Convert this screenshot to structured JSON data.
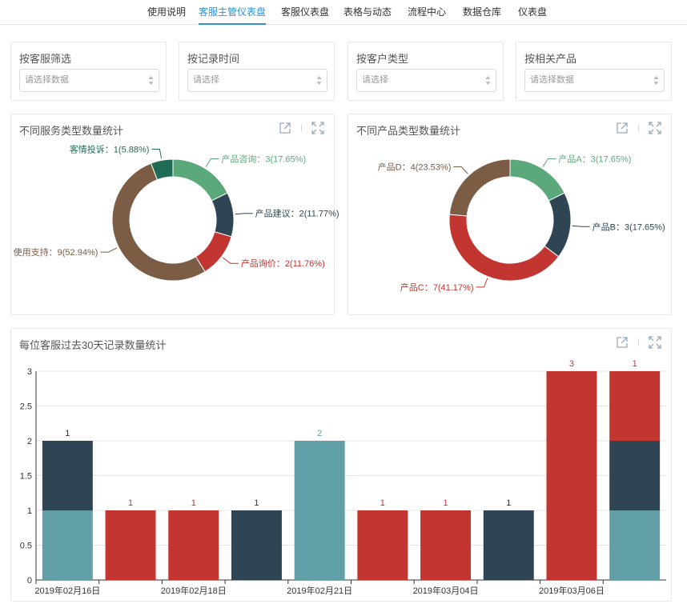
{
  "nav": {
    "tabs": [
      {
        "label": "使用说明"
      },
      {
        "label": "客服主管仪表盘",
        "active": true
      },
      {
        "label": "客服仪表盘"
      },
      {
        "label": "表格与动态"
      },
      {
        "label": "流程中心"
      },
      {
        "label": "数据仓库"
      },
      {
        "label": "仪表盘"
      }
    ]
  },
  "filters": [
    {
      "title": "按客服筛选",
      "placeholder": "请选择数据"
    },
    {
      "title": "按记录时间",
      "placeholder": "请选择"
    },
    {
      "title": "按客户类型",
      "placeholder": "请选择"
    },
    {
      "title": "按相关产品",
      "placeholder": "请选择数据"
    }
  ],
  "icons": {
    "export": "external-link-icon",
    "fullscreen": "fullscreen-icon"
  },
  "colors": {
    "green": "#5ba97a",
    "navy": "#2f4554",
    "red": "#c23531",
    "brown": "#7b5d45",
    "darkgreen": "#1f6b56",
    "teal": "#61a0a8",
    "accent": "#2f8fd8"
  },
  "pie_service": {
    "title": "不同服务类型数量统计",
    "chart_data": {
      "type": "pie",
      "slices": [
        {
          "name": "产品咨询",
          "value": 3,
          "label": "产品咨询：3(17.65%)",
          "color": "#5ba97a"
        },
        {
          "name": "产品建议",
          "value": 2,
          "label": "产品建议：2(11.77%)",
          "color": "#2f4554"
        },
        {
          "name": "产品询价",
          "value": 2,
          "label": "产品询价：2(11.76%)",
          "color": "#c23531"
        },
        {
          "name": "使用支持",
          "value": 9,
          "label": "使用支持：9(52.94%)",
          "color": "#7b5d45"
        },
        {
          "name": "客情投诉",
          "value": 1,
          "label": "客情投诉：1(5.88%)",
          "color": "#1f6b56"
        }
      ]
    }
  },
  "pie_product": {
    "title": "不同产品类型数量统计",
    "chart_data": {
      "type": "pie",
      "slices": [
        {
          "name": "产品A",
          "value": 3,
          "label": "产品A：3(17.65%)",
          "color": "#5ba97a"
        },
        {
          "name": "产品B",
          "value": 3,
          "label": "产品B：3(17.65%)",
          "color": "#2f4554"
        },
        {
          "name": "产品C",
          "value": 7,
          "label": "产品C：7(41.17%)",
          "color": "#c23531"
        },
        {
          "name": "产品D",
          "value": 4,
          "label": "产品D：4(23.53%)",
          "color": "#7b5d45"
        }
      ]
    }
  },
  "bar_chart": {
    "title": "每位客服过去30天记录数量统计",
    "chart_data": {
      "type": "bar",
      "stacked": true,
      "ylim": [
        0,
        3
      ],
      "yticks": [
        "0",
        "0.5",
        "1",
        "1.5",
        "2",
        "2.5",
        "3"
      ],
      "xtick_labels": [
        "2019年02月16日",
        "2019年02月18日",
        "2019年02月21日",
        "2019年03月04日",
        "2019年03月06日"
      ],
      "bars": [
        {
          "segments": [
            {
              "value": 1,
              "color": "#61a0a8"
            },
            {
              "value": 1,
              "color": "#2f4554"
            }
          ],
          "label": "1",
          "label_color": "#333333"
        },
        {
          "segments": [
            {
              "value": 1,
              "color": "#c23531"
            }
          ],
          "label": "1",
          "label_color": "#c23531"
        },
        {
          "segments": [
            {
              "value": 1,
              "color": "#c23531"
            }
          ],
          "label": "1",
          "label_color": "#c23531"
        },
        {
          "segments": [
            {
              "value": 1,
              "color": "#2f4554"
            }
          ],
          "label": "1",
          "label_color": "#333333"
        },
        {
          "segments": [
            {
              "value": 2,
              "color": "#61a0a8"
            }
          ],
          "label": "2",
          "label_color": "#61a0a8"
        },
        {
          "segments": [
            {
              "value": 1,
              "color": "#c23531"
            }
          ],
          "label": "1",
          "label_color": "#c23531"
        },
        {
          "segments": [
            {
              "value": 1,
              "color": "#c23531"
            }
          ],
          "label": "1",
          "label_color": "#c23531"
        },
        {
          "segments": [
            {
              "value": 1,
              "color": "#2f4554"
            }
          ],
          "label": "1",
          "label_color": "#333333"
        },
        {
          "segments": [
            {
              "value": 3,
              "color": "#c23531"
            }
          ],
          "label": "3",
          "label_color": "#c23531"
        },
        {
          "segments": [
            {
              "value": 1,
              "color": "#61a0a8"
            },
            {
              "value": 1,
              "color": "#2f4554"
            },
            {
              "value": 1,
              "color": "#c23531"
            }
          ],
          "label": "1",
          "label_color": "#c23531"
        }
      ]
    }
  }
}
